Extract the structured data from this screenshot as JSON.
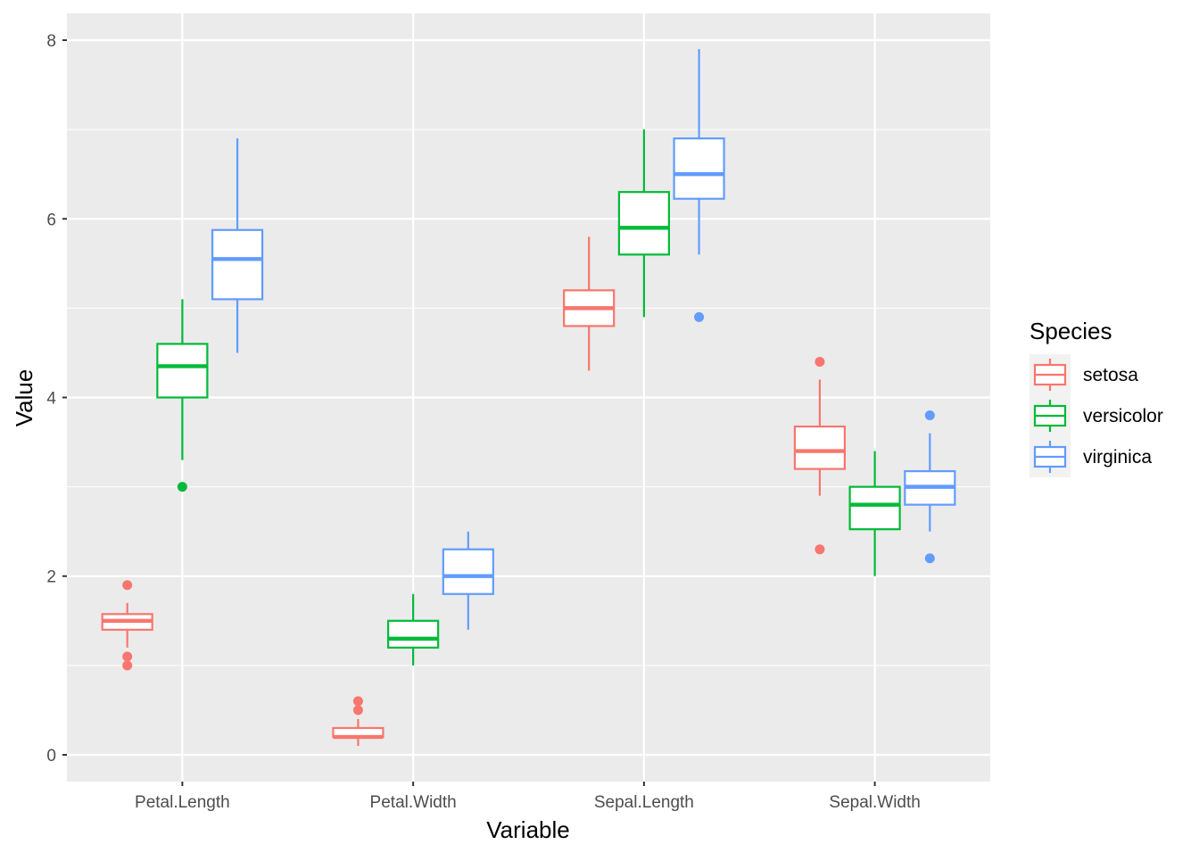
{
  "chart_data": {
    "type": "boxplot",
    "title": "",
    "xlabel": "Variable",
    "ylabel": "Value",
    "ylim": [
      -0.3,
      8.3
    ],
    "yticks": [
      0,
      2,
      4,
      6,
      8
    ],
    "grid": true,
    "categories": [
      "Petal.Length",
      "Petal.Width",
      "Sepal.Length",
      "Sepal.Width"
    ],
    "legend": {
      "title": "Species",
      "placement": "right"
    },
    "series": [
      {
        "name": "setosa",
        "color": "#F8766D",
        "boxes": [
          {
            "lower": 1.2,
            "q1": 1.4,
            "median": 1.5,
            "q3": 1.575,
            "upper": 1.7,
            "outliers": [
              1.0,
              1.1,
              1.9
            ]
          },
          {
            "lower": 0.1,
            "q1": 0.2,
            "median": 0.2,
            "q3": 0.3,
            "upper": 0.4,
            "outliers": [
              0.5,
              0.6
            ]
          },
          {
            "lower": 4.3,
            "q1": 4.8,
            "median": 5.0,
            "q3": 5.2,
            "upper": 5.8,
            "outliers": []
          },
          {
            "lower": 2.9,
            "q1": 3.2,
            "median": 3.4,
            "q3": 3.675,
            "upper": 4.2,
            "outliers": [
              2.3,
              4.4
            ]
          }
        ]
      },
      {
        "name": "versicolor",
        "color": "#00BA38",
        "boxes": [
          {
            "lower": 3.3,
            "q1": 4.0,
            "median": 4.35,
            "q3": 4.6,
            "upper": 5.1,
            "outliers": [
              3.0
            ]
          },
          {
            "lower": 1.0,
            "q1": 1.2,
            "median": 1.3,
            "q3": 1.5,
            "upper": 1.8,
            "outliers": []
          },
          {
            "lower": 4.9,
            "q1": 5.6,
            "median": 5.9,
            "q3": 6.3,
            "upper": 7.0,
            "outliers": []
          },
          {
            "lower": 2.0,
            "q1": 2.525,
            "median": 2.8,
            "q3": 3.0,
            "upper": 3.4,
            "outliers": []
          }
        ]
      },
      {
        "name": "virginica",
        "color": "#619CFF",
        "boxes": [
          {
            "lower": 4.5,
            "q1": 5.1,
            "median": 5.55,
            "q3": 5.875,
            "upper": 6.9,
            "outliers": []
          },
          {
            "lower": 1.4,
            "q1": 1.8,
            "median": 2.0,
            "q3": 2.3,
            "upper": 2.5,
            "outliers": []
          },
          {
            "lower": 5.6,
            "q1": 6.225,
            "median": 6.5,
            "q3": 6.9,
            "upper": 7.9,
            "outliers": [
              4.9
            ]
          },
          {
            "lower": 2.5,
            "q1": 2.8,
            "median": 3.0,
            "q3": 3.175,
            "upper": 3.6,
            "outliers": [
              2.2,
              3.8
            ]
          }
        ]
      }
    ]
  }
}
